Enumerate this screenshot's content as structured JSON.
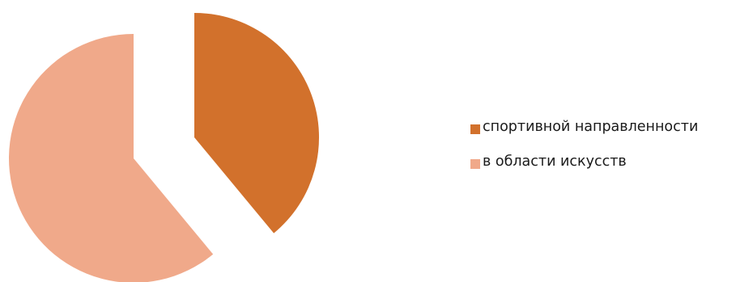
{
  "chart_data": {
    "type": "pie",
    "exploded": true,
    "start_angle_deg": 0,
    "direction": "clockwise",
    "slices": [
      {
        "label": "спортивной направленности",
        "value": 39,
        "color": "#D2712C"
      },
      {
        "label": "в области искусств",
        "value": 61,
        "color": "#F0A98A"
      }
    ],
    "legend_position": "right"
  }
}
